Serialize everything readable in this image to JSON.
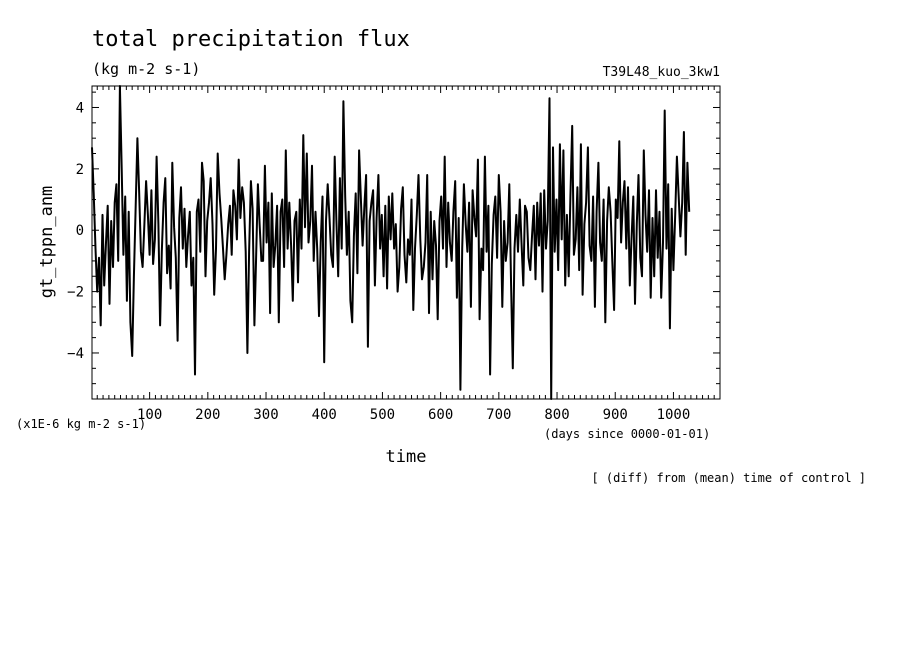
{
  "chart_data": {
    "type": "line",
    "title": "total precipitation flux",
    "units": "(kg m-2 s-1)",
    "run_name": "T39L48_kuo_3kw1",
    "ylabel": "gt_tppn_anm",
    "y_scale_note": "(x1E-6 kg m-2 s-1)",
    "xlabel": "time",
    "x_units_note": "(days since 0000-01-01)",
    "footnote": "[ (diff) from (mean) time of control ]",
    "xlim": [
      1,
      1080
    ],
    "ylim": [
      -5.5,
      4.7
    ],
    "x_ticks": [
      100,
      200,
      300,
      400,
      500,
      600,
      700,
      800,
      900,
      1000
    ],
    "x_tick_labels": [
      "100",
      "200",
      "300",
      "400",
      "500",
      "600",
      "700",
      "800",
      "900",
      "1000"
    ],
    "y_ticks": [
      -4,
      -2,
      0,
      2,
      4
    ],
    "y_tick_labels": [
      "−4",
      "−2",
      "0",
      "2",
      "4"
    ],
    "grid": false,
    "series": [
      {
        "x_start": 1,
        "x_step": 3,
        "values": [
          2.7,
          1.2,
          -0.6,
          -2.0,
          -0.9,
          -3.1,
          0.5,
          -1.8,
          -0.4,
          0.8,
          -2.4,
          0.3,
          -1.2,
          0.9,
          1.5,
          -1.0,
          4.7,
          2.0,
          -0.8,
          1.1,
          -2.3,
          0.6,
          -3.0,
          -4.1,
          -1.5,
          0.8,
          3.0,
          1.3,
          -0.7,
          -1.2,
          0.2,
          1.6,
          0.5,
          -0.8,
          1.3,
          -1.1,
          -0.3,
          2.4,
          0.2,
          -3.1,
          -0.7,
          0.9,
          1.7,
          -1.4,
          -0.5,
          -1.9,
          2.2,
          0.1,
          -0.9,
          -3.6,
          0.4,
          1.4,
          -0.6,
          0.7,
          -1.2,
          -0.2,
          0.6,
          -1.8,
          -0.9,
          -4.7,
          0.6,
          1.0,
          -0.7,
          2.2,
          1.6,
          -1.5,
          0.3,
          0.9,
          1.7,
          0.2,
          -2.1,
          -0.6,
          2.5,
          1.2,
          0.4,
          -0.6,
          -1.6,
          -0.8,
          0.2,
          0.8,
          -0.8,
          1.3,
          0.8,
          -0.3,
          2.3,
          0.4,
          1.4,
          0.9,
          -0.7,
          -4.0,
          -0.7,
          1.6,
          0.7,
          -3.1,
          -0.9,
          1.5,
          0.2,
          -1.0,
          -1.0,
          2.1,
          -0.4,
          0.9,
          -2.7,
          1.2,
          -1.2,
          -0.5,
          0.8,
          -3.0,
          0.6,
          1.0,
          -1.2,
          2.6,
          -0.6,
          0.9,
          -0.5,
          -2.3,
          0.3,
          0.6,
          -1.7,
          1.0,
          -0.6,
          3.1,
          0.1,
          2.5,
          -0.4,
          0.3,
          2.1,
          -1.0,
          0.6,
          -0.6,
          -2.8,
          -0.4,
          1.1,
          -4.3,
          0.3,
          1.5,
          0.4,
          -0.8,
          -1.2,
          2.4,
          0.3,
          -1.5,
          1.7,
          -0.6,
          4.2,
          1.1,
          -0.8,
          0.6,
          -2.3,
          -3.0,
          -0.2,
          1.2,
          -1.4,
          2.6,
          1.0,
          -0.5,
          0.8,
          1.8,
          -3.8,
          0.3,
          0.9,
          1.3,
          -1.8,
          0.4,
          1.8,
          -0.6,
          0.5,
          -1.5,
          0.8,
          -1.9,
          1.1,
          -0.3,
          1.2,
          -0.6,
          0.2,
          -2.0,
          -1.2,
          0.7,
          1.4,
          -0.8,
          -1.7,
          -0.3,
          -0.8,
          1.0,
          -2.6,
          -0.6,
          0.5,
          1.8,
          -0.3,
          -1.6,
          -1.2,
          -0.4,
          1.8,
          -2.7,
          0.6,
          -1.6,
          0.3,
          -0.5,
          -2.9,
          0.3,
          1.1,
          -0.6,
          2.4,
          -1.2,
          0.9,
          -0.4,
          -1.0,
          0.6,
          1.6,
          -2.2,
          0.4,
          -5.2,
          -0.6,
          1.5,
          0.2,
          -0.7,
          0.9,
          -2.5,
          1.3,
          0.4,
          -0.2,
          2.3,
          -2.9,
          -0.6,
          -1.3,
          2.4,
          -0.7,
          0.8,
          -4.7,
          -1.1,
          0.5,
          1.1,
          -0.9,
          1.8,
          0.6,
          -2.5,
          0.3,
          -1.0,
          -0.4,
          1.5,
          -1.8,
          -4.5,
          -0.6,
          0.5,
          -0.7,
          1.0,
          -0.4,
          -1.8,
          0.8,
          0.6,
          -0.9,
          -1.3,
          -0.2,
          0.8,
          -1.6,
          0.9,
          -0.5,
          1.2,
          -2.0,
          1.3,
          -0.6,
          0.3,
          4.3,
          -5.5,
          2.7,
          -0.7,
          1.0,
          -1.3,
          2.8,
          -0.3,
          2.6,
          -1.8,
          0.5,
          -1.5,
          1.1,
          3.4,
          -0.8,
          -0.3,
          1.4,
          -1.3,
          2.8,
          -2.1,
          0.2,
          0.9,
          2.7,
          -0.5,
          -1.0,
          1.1,
          -2.5,
          0.6,
          2.2,
          -0.4,
          -1.0,
          1.0,
          -3.0,
          0.3,
          1.4,
          0.6,
          -1.0,
          -2.6,
          1.0,
          0.4,
          2.9,
          -0.4,
          0.9,
          1.6,
          -0.6,
          1.4,
          -1.8,
          -0.3,
          1.1,
          -2.4,
          0.2,
          1.8,
          -0.9,
          -1.5,
          2.6,
          0.5,
          -0.7,
          1.3,
          -2.2,
          0.4,
          -1.5,
          1.3,
          -0.9,
          0.6,
          -2.2,
          -0.4,
          3.9,
          -0.6,
          1.5,
          -3.2,
          0.7,
          -1.3,
          0.5,
          2.4,
          1.1,
          -0.2,
          0.9,
          3.2,
          -0.8,
          2.2,
          0.6
        ]
      }
    ]
  }
}
